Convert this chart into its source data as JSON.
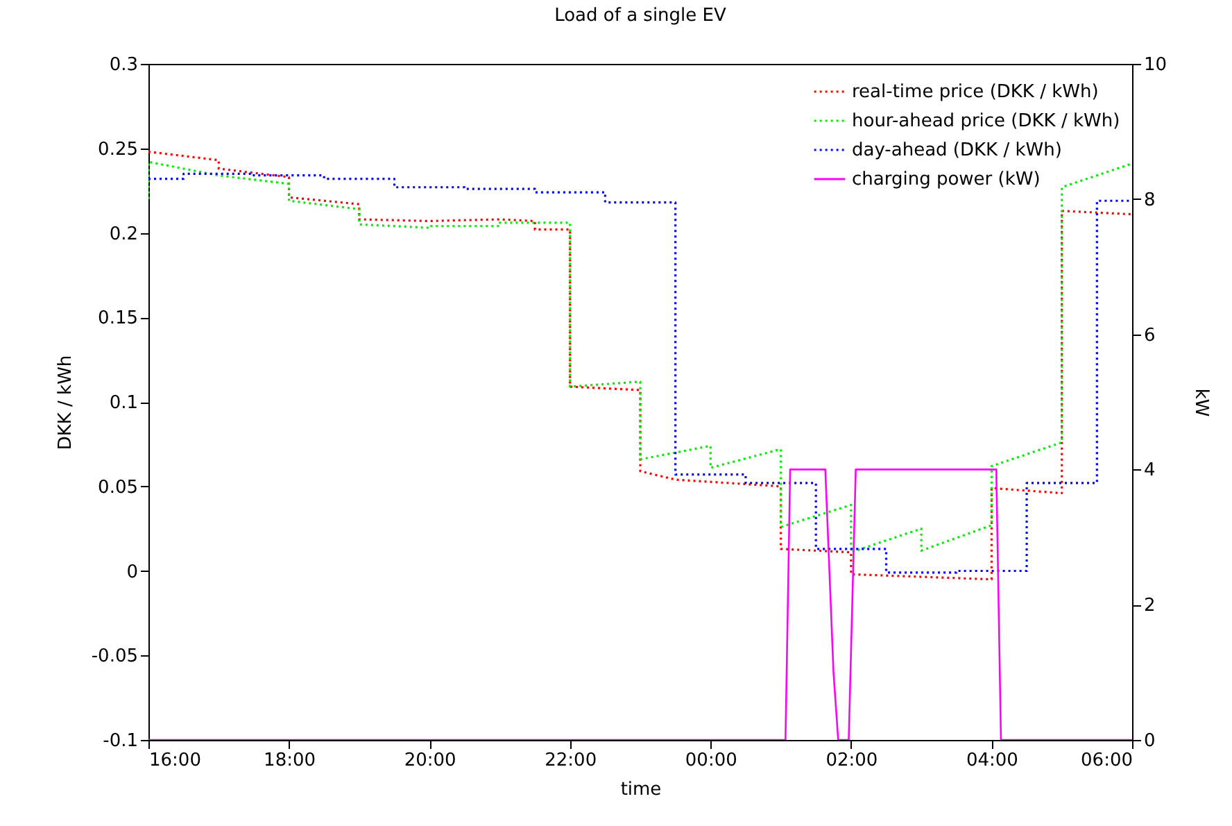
{
  "chart_data": {
    "type": "line",
    "title": "Load of a single EV",
    "xlabel": "time",
    "ylabel": "DKK / kWh",
    "y2label": "kW",
    "xlim": [
      "--01-01T16:00",
      "--01-02T06:00"
    ],
    "xticks": [
      {
        "value": "--01-01T16:00",
        "label": "16:00"
      },
      {
        "value": "--01-01T18:00",
        "label": "18:00"
      },
      {
        "value": "--01-01T20:00",
        "label": "20:00"
      },
      {
        "value": "--01-01T22:00",
        "label": "22:00"
      },
      {
        "value": "--01-02T00:00",
        "label": "00:00"
      },
      {
        "value": "--01-02T02:00",
        "label": "02:00"
      },
      {
        "value": "--01-02T04:00",
        "label": "04:00"
      },
      {
        "value": "--01-02T06:00",
        "label": "06:00"
      }
    ],
    "ylim": [
      -0.1,
      0.3
    ],
    "yticks": [
      -0.1,
      -0.05,
      0,
      0.05,
      0.1,
      0.15,
      0.2,
      0.25,
      0.3
    ],
    "y2lim": [
      0,
      10
    ],
    "y2ticks": [
      0,
      2,
      4,
      6,
      8,
      10
    ],
    "legend": "top right",
    "series": [
      {
        "name": "real-time price (DKK / kWh)",
        "color": "#ff0000",
        "line_style": "dotted",
        "x": [
          "--01-01T16:00",
          "--01-01T17:00",
          "--01-01T17:00",
          "--01-01T18:00",
          "--01-01T18:00",
          "--01-01T19:00",
          "--01-01T19:00",
          "--01-01T20:00",
          "--01-01T21:00",
          "--01-01T21:30",
          "--01-01T21:30",
          "--01-01T22:00",
          "--01-01T22:00",
          "--01-01T23:00",
          "--01-01T23:00",
          "--01-01T23:30",
          "--01-02T01:00",
          "--01-02T01:00",
          "--01-02T02:00",
          "--01-02T02:00",
          "--01-02T04:00",
          "--01-02T04:00",
          "--01-02T05:00",
          "--01-02T05:00",
          "--01-02T06:00"
        ],
        "values": [
          0.248,
          0.243,
          0.238,
          0.233,
          0.221,
          0.217,
          0.208,
          0.207,
          0.208,
          0.207,
          0.202,
          0.202,
          0.109,
          0.107,
          0.059,
          0.054,
          0.05,
          0.013,
          0.011,
          -0.002,
          -0.005,
          0.049,
          0.046,
          0.213,
          0.211
        ]
      },
      {
        "name": "hour-ahead price (DKK / kWh)",
        "color": "#00ee00",
        "line_style": "dotted",
        "x": [
          "--01-01T16:00",
          "--01-01T16:00",
          "--01-01T17:00",
          "--01-01T18:00",
          "--01-01T18:00",
          "--01-01T19:00",
          "--01-01T19:00",
          "--01-01T20:00",
          "--01-01T20:00",
          "--01-01T21:00",
          "--01-01T21:00",
          "--01-01T22:00",
          "--01-01T22:00",
          "--01-01T23:00",
          "--01-01T23:00",
          "--01-02T00:00",
          "--01-02T00:00",
          "--01-02T01:00",
          "--01-02T01:00",
          "--01-02T02:00",
          "--01-02T02:00",
          "--01-02T03:00",
          "--01-02T03:00",
          "--01-02T04:00",
          "--01-02T04:00",
          "--01-02T05:00",
          "--01-02T05:00",
          "--01-02T06:00"
        ],
        "values": [
          0.22,
          0.242,
          0.234,
          0.229,
          0.219,
          0.214,
          0.205,
          0.203,
          0.204,
          0.204,
          0.206,
          0.206,
          0.109,
          0.112,
          0.066,
          0.074,
          0.061,
          0.072,
          0.026,
          0.039,
          0.011,
          0.025,
          0.012,
          0.027,
          0.062,
          0.076,
          0.227,
          0.241
        ]
      },
      {
        "name": "day-ahead (DKK / kWh)",
        "color": "#0000ff",
        "line_style": "dotted",
        "x": [
          "--01-01T16:00",
          "--01-01T16:30",
          "--01-01T16:30",
          "--01-01T17:30",
          "--01-01T17:30",
          "--01-01T18:30",
          "--01-01T18:30",
          "--01-01T19:30",
          "--01-01T19:30",
          "--01-01T20:30",
          "--01-01T20:30",
          "--01-01T21:30",
          "--01-01T21:30",
          "--01-01T22:30",
          "--01-01T22:30",
          "--01-01T23:30",
          "--01-01T23:30",
          "--01-02T00:30",
          "--01-02T00:30",
          "--01-02T01:30",
          "--01-02T01:30",
          "--01-02T02:30",
          "--01-02T02:30",
          "--01-02T03:30",
          "--01-02T03:30",
          "--01-02T04:30",
          "--01-02T04:30",
          "--01-02T05:30",
          "--01-02T05:30",
          "--01-02T06:00"
        ],
        "values": [
          0.232,
          0.232,
          0.235,
          0.235,
          0.234,
          0.234,
          0.232,
          0.232,
          0.227,
          0.227,
          0.226,
          0.226,
          0.224,
          0.224,
          0.218,
          0.218,
          0.057,
          0.057,
          0.052,
          0.052,
          0.013,
          0.013,
          -0.001,
          -0.001,
          0,
          0,
          0.052,
          0.052,
          0.219,
          0.219
        ]
      },
      {
        "name": "charging power (kW)",
        "color": "#ff00ff",
        "line_style": "solid",
        "axis": "y2",
        "x": [
          "--01-01T16:00",
          "--01-02T01:04",
          "--01-02T01:08",
          "--01-02T01:38",
          "--01-02T01:45",
          "--01-02T01:49",
          "--01-02T01:58",
          "--01-02T02:04",
          "--01-02T04:04",
          "--01-02T04:08",
          "--01-02T06:00"
        ],
        "values": [
          0,
          0,
          4,
          4,
          1,
          0,
          0,
          4,
          4,
          0,
          0
        ]
      }
    ]
  }
}
